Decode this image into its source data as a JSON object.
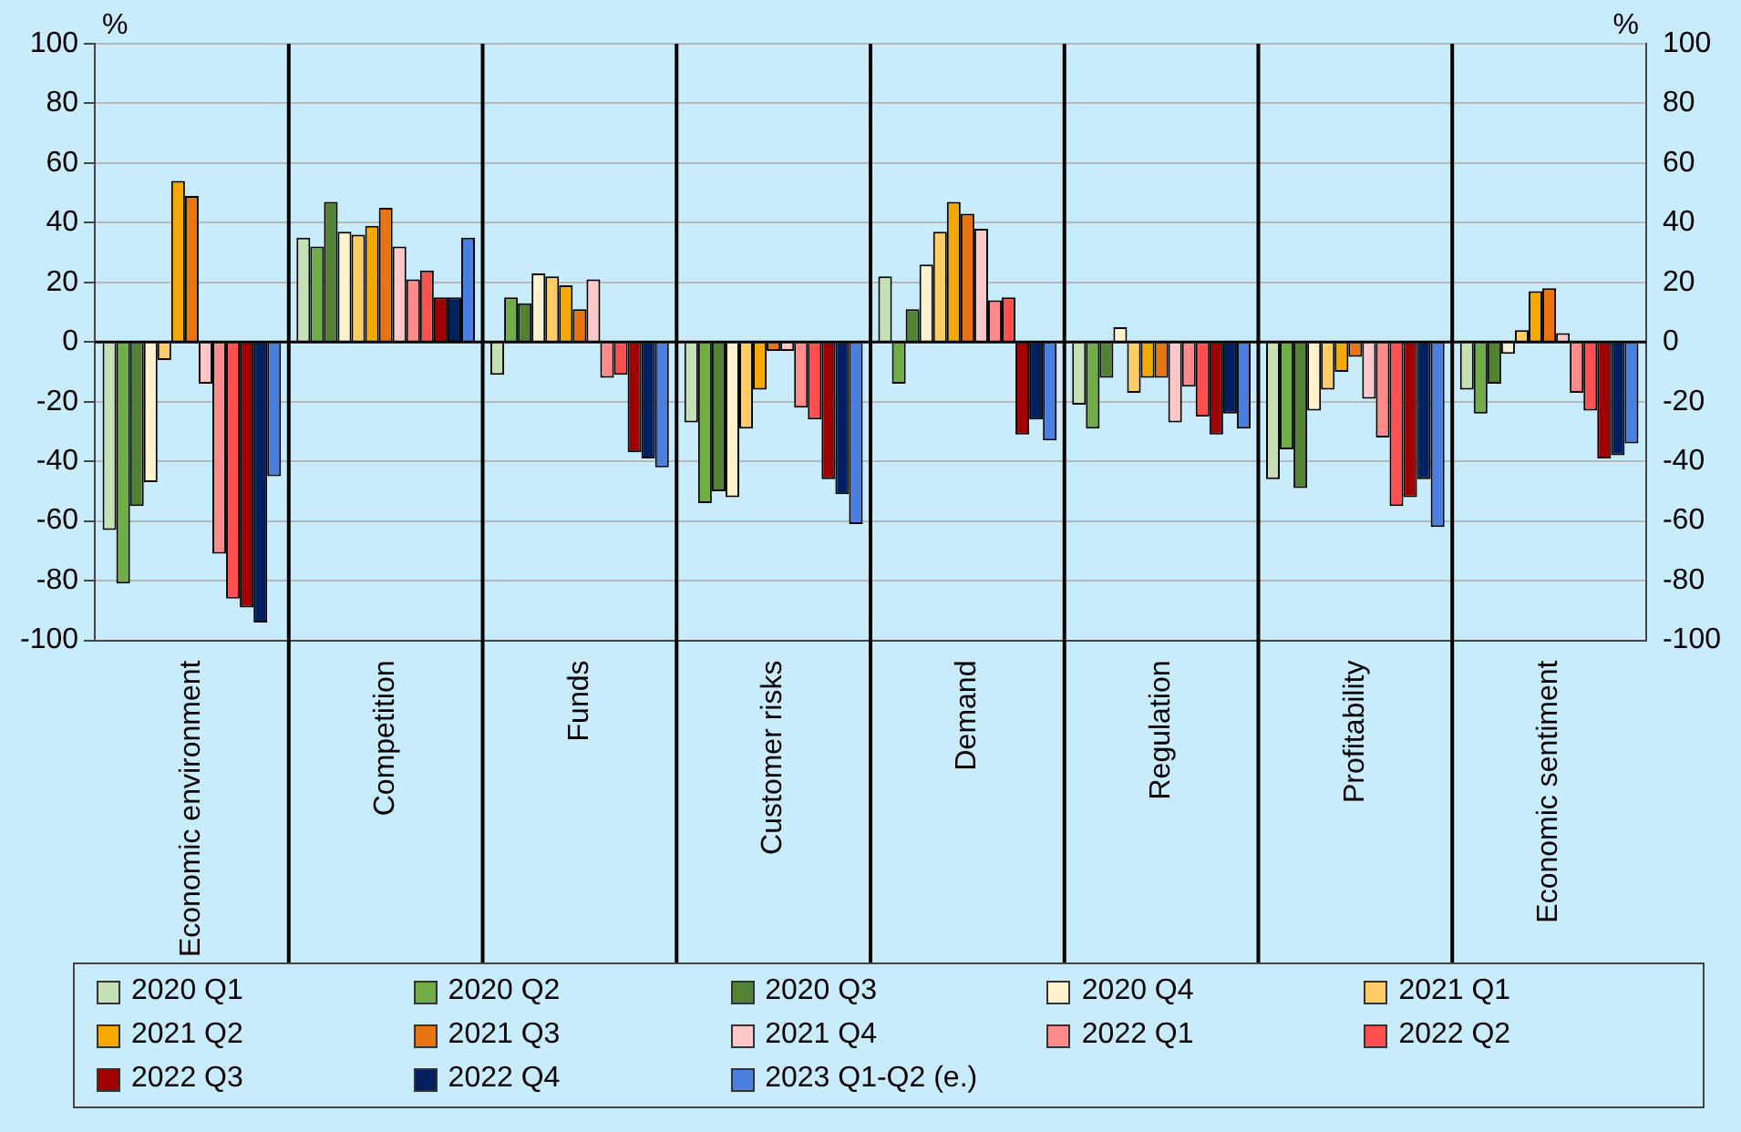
{
  "chart_data": {
    "type": "bar",
    "ylabel": "%",
    "y2label": "%",
    "categories": [
      "Economic environment",
      "Competition",
      "Funds",
      "Customer risks",
      "Demand",
      "Regulation",
      "Profitability",
      "Economic sentiment"
    ],
    "series": [
      {
        "name": "2020 Q1",
        "color": "#c5e0b4",
        "values": [
          -63,
          35,
          -11,
          -27,
          22,
          -21,
          -46,
          -16
        ]
      },
      {
        "name": "2020 Q2",
        "color": "#70ad47",
        "values": [
          -81,
          32,
          15,
          -54,
          -14,
          -29,
          -36,
          -24
        ]
      },
      {
        "name": "2020 Q3",
        "color": "#548235",
        "values": [
          -55,
          47,
          13,
          -50,
          11,
          -12,
          -49,
          -14
        ]
      },
      {
        "name": "2020 Q4",
        "color": "#fff2cc",
        "values": [
          -47,
          37,
          23,
          -52,
          26,
          5,
          -23,
          -4
        ]
      },
      {
        "name": "2021 Q1",
        "color": "#ffcc66",
        "values": [
          -6,
          36,
          22,
          -29,
          37,
          -17,
          -16,
          4
        ]
      },
      {
        "name": "2021 Q2",
        "color": "#f5a800",
        "values": [
          54,
          39,
          19,
          -16,
          47,
          -12,
          -10,
          17
        ]
      },
      {
        "name": "2021 Q3",
        "color": "#e87511",
        "values": [
          49,
          45,
          11,
          -3,
          43,
          -12,
          -5,
          18
        ]
      },
      {
        "name": "2021 Q4",
        "color": "#ffc7c7",
        "values": [
          -14,
          32,
          21,
          -3,
          38,
          -27,
          -19,
          3
        ]
      },
      {
        "name": "2022 Q1",
        "color": "#ff8a8a",
        "values": [
          -71,
          21,
          -12,
          -22,
          14,
          -15,
          -32,
          -17
        ]
      },
      {
        "name": "2022 Q2",
        "color": "#ff4f4f",
        "values": [
          -86,
          24,
          -11,
          -26,
          15,
          -25,
          -55,
          -23
        ]
      },
      {
        "name": "2022 Q3",
        "color": "#a00000",
        "values": [
          -89,
          15,
          -37,
          -46,
          -31,
          -31,
          -52,
          -39
        ]
      },
      {
        "name": "2022 Q4",
        "color": "#002060",
        "values": [
          -94,
          15,
          -39,
          -51,
          -26,
          -24,
          -46,
          -38
        ]
      },
      {
        "name": "2023 Q1-Q2 (e.)",
        "color": "#4a7fe0",
        "values": [
          -45,
          35,
          -42,
          -61,
          -33,
          -29,
          -62,
          -34
        ]
      }
    ],
    "ylim": [
      -100,
      100
    ],
    "yticks": [
      -100,
      -80,
      -60,
      -40,
      -20,
      0,
      20,
      40,
      60,
      80,
      100
    ],
    "y2lim": [
      -100,
      100
    ],
    "y2ticks": [
      -100,
      -80,
      -60,
      -40,
      -20,
      0,
      20,
      40,
      60,
      80,
      100
    ],
    "grid": "y",
    "legend": "bottom"
  }
}
